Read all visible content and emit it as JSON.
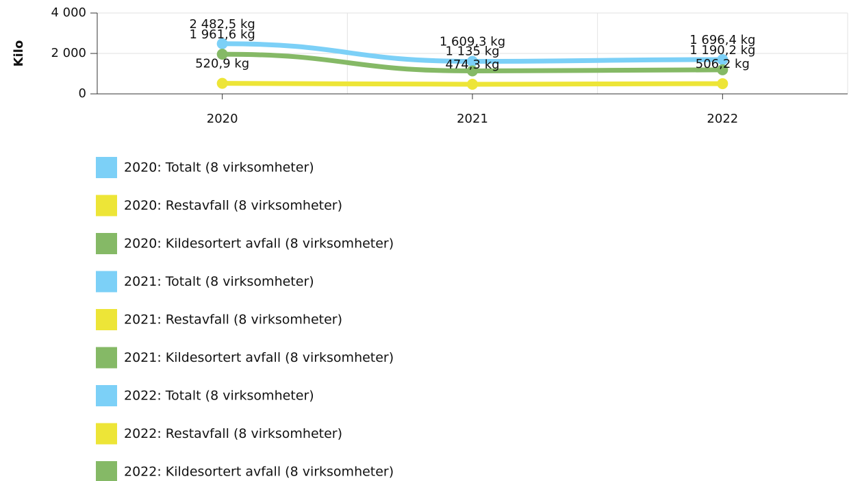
{
  "chart_data": {
    "type": "line",
    "y_label": "Kilo",
    "categories": [
      "2020",
      "2021",
      "2022"
    ],
    "series": [
      {
        "name": "Totalt",
        "color": "#7cd0f7",
        "values": [
          2482.5,
          1609.3,
          1696.4
        ],
        "value_labels": [
          "2 482,5 kg",
          "1 609,3 kg",
          "1 696,4 kg"
        ]
      },
      {
        "name": "Restavfall",
        "color": "#ede537",
        "values": [
          520.9,
          474.3,
          506.2
        ],
        "value_labels": [
          "520,9 kg",
          "474,3 kg",
          "506,2 kg"
        ]
      },
      {
        "name": "Kildesortert avfall",
        "color": "#85b966",
        "values": [
          1961.6,
          1135,
          1190.2
        ],
        "value_labels": [
          "1 961,6 kg",
          "1 135 kg",
          "1 190,2 kg"
        ]
      }
    ],
    "legend_entries": [
      {
        "label": "2020: Totalt (8 virksomheter)",
        "color": "#7cd0f7"
      },
      {
        "label": "2020: Restavfall (8 virksomheter)",
        "color": "#ede537"
      },
      {
        "label": "2020: Kildesortert avfall (8 virksomheter)",
        "color": "#85b966"
      },
      {
        "label": "2021: Totalt (8 virksomheter)",
        "color": "#7cd0f7"
      },
      {
        "label": "2021: Restavfall (8 virksomheter)",
        "color": "#ede537"
      },
      {
        "label": "2021: Kildesortert avfall (8 virksomheter)",
        "color": "#85b966"
      },
      {
        "label": "2022: Totalt (8 virksomheter)",
        "color": "#7cd0f7"
      },
      {
        "label": "2022: Restavfall (8 virksomheter)",
        "color": "#ede537"
      },
      {
        "label": "2022: Kildesortert avfall (8 virksomheter)",
        "color": "#85b966"
      }
    ],
    "ylim": [
      0,
      4000
    ],
    "yticks": [
      {
        "value": 0,
        "label": "0"
      },
      {
        "value": 2000,
        "label": "2 000"
      },
      {
        "value": 4000,
        "label": "4 000"
      }
    ],
    "grid": true
  }
}
